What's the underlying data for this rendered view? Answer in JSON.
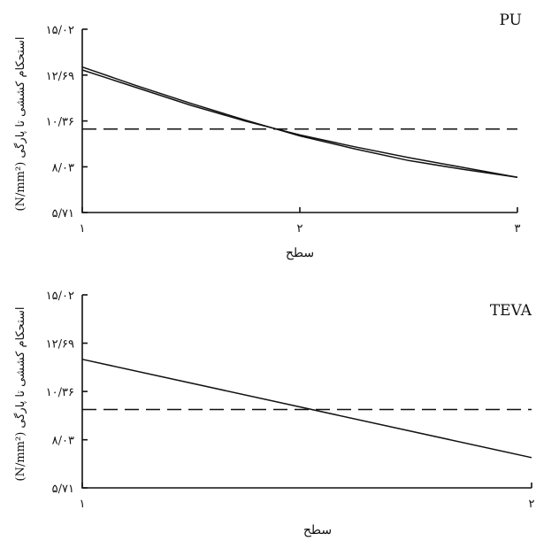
{
  "chart_data": [
    {
      "type": "line",
      "corner_label": "PU",
      "xlabel": "سطح",
      "ylabel": "استحکام کششی تا پارگی (N/mm²)",
      "x_ticks": [
        "۱",
        "۲",
        "۳"
      ],
      "x_values": [
        1,
        2,
        3
      ],
      "xlim": [
        1,
        3
      ],
      "y_ticks": [
        "۵/۷۱",
        "۸/۰۳",
        "۱۰/۳۶",
        "۱۲/۶۹",
        "۱۵/۰۲"
      ],
      "y_tick_values": [
        5.71,
        8.03,
        10.36,
        12.69,
        15.02
      ],
      "ylim": [
        5.71,
        15.02
      ],
      "series": [
        {
          "x": [
            1,
            1.25,
            1.5,
            1.75,
            2,
            2.25,
            2.5,
            2.75,
            3
          ],
          "y": [
            13.1,
            12.15,
            11.25,
            10.4,
            9.6,
            8.95,
            8.35,
            7.9,
            7.5
          ]
        },
        {
          "x": [
            1,
            1.25,
            1.5,
            1.75,
            2,
            2.25,
            2.5,
            2.75,
            3
          ],
          "y": [
            12.95,
            12.05,
            11.15,
            10.35,
            9.65,
            9.05,
            8.5,
            8.0,
            7.5
          ]
        }
      ],
      "reference_line": {
        "y": 9.95,
        "style": "dashed"
      },
      "grid": false
    },
    {
      "type": "line",
      "corner_label": "TEVA",
      "xlabel": "سطح",
      "ylabel": "استحکام کششی تا پارگی (N/mm²)",
      "x_ticks": [
        "۱",
        "۲"
      ],
      "x_values": [
        1,
        2
      ],
      "xlim": [
        1,
        2
      ],
      "y_ticks": [
        "۵/۷۱",
        "۸/۰۳",
        "۱۰/۳۶",
        "۱۲/۶۹",
        "۱۵/۰۲"
      ],
      "y_tick_values": [
        5.71,
        8.03,
        10.36,
        12.69,
        15.02
      ],
      "ylim": [
        5.71,
        15.02
      ],
      "series": [
        {
          "x": [
            1,
            2
          ],
          "y": [
            11.91,
            7.17
          ]
        }
      ],
      "reference_line": {
        "y": 9.49,
        "style": "dashed"
      },
      "grid": false
    }
  ]
}
